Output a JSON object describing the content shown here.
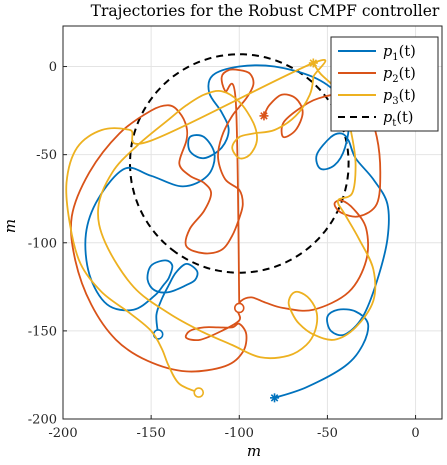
{
  "chart_data": {
    "type": "line",
    "title": "Trajectories for the Robust CMPF controller",
    "xlabel": "m",
    "ylabel": "m",
    "xlim": [
      -200,
      15
    ],
    "ylim": [
      -200,
      23
    ],
    "x_ticks": [
      "-200",
      "-150",
      "-100",
      "-50",
      "0"
    ],
    "y_ticks": [
      "0",
      "-50",
      "-100",
      "-150",
      "-200"
    ],
    "grid": true,
    "legend_position": "top-right",
    "legend": [
      {
        "key": "p1",
        "base": "p",
        "sub": "1",
        "arg": "(t)",
        "color": "#0072BD",
        "style": "solid"
      },
      {
        "key": "p2",
        "base": "p",
        "sub": "2",
        "arg": "(t)",
        "color": "#D95319",
        "style": "solid"
      },
      {
        "key": "p3",
        "base": "p",
        "sub": "3",
        "arg": "(t)",
        "color": "#EDB120",
        "style": "solid"
      },
      {
        "key": "pt",
        "base": "p",
        "sub": "t",
        "arg": "(t)",
        "color": "#000000",
        "style": "dashed"
      }
    ],
    "target_circle": {
      "center": [
        -100,
        -55
      ],
      "radius": 62,
      "from_deg": -128,
      "to_deg": 233
    },
    "series": [
      {
        "name": "p1(t)",
        "color": "#0072BD",
        "start": [
          -80,
          -188
        ],
        "end": [
          -146,
          -152
        ],
        "points": [
          [
            -80,
            -188
          ],
          [
            -62,
            -182
          ],
          [
            -40,
            -170
          ],
          [
            -30,
            -158
          ],
          [
            -27,
            -146
          ],
          [
            -34,
            -139
          ],
          [
            -44,
            -138
          ],
          [
            -50,
            -142
          ],
          [
            -48,
            -150
          ],
          [
            -40,
            -152
          ],
          [
            -30,
            -142
          ],
          [
            -22,
            -122
          ],
          [
            -16,
            -98
          ],
          [
            -16,
            -78
          ],
          [
            -24,
            -64
          ],
          [
            -34,
            -52
          ],
          [
            -38,
            -42
          ],
          [
            -42,
            -38
          ],
          [
            -48,
            -40
          ],
          [
            -56,
            -50
          ],
          [
            -54,
            -58
          ],
          [
            -46,
            -56
          ],
          [
            -40,
            -46
          ],
          [
            -38,
            -30
          ],
          [
            -44,
            -16
          ],
          [
            -58,
            -6
          ],
          [
            -80,
            0
          ],
          [
            -100,
            0
          ],
          [
            -115,
            -5
          ],
          [
            -117,
            -15
          ],
          [
            -110,
            -26
          ],
          [
            -106,
            -36
          ],
          [
            -110,
            -46
          ],
          [
            -120,
            -52
          ],
          [
            -128,
            -48
          ],
          [
            -128,
            -40
          ],
          [
            -120,
            -40
          ],
          [
            -114,
            -50
          ],
          [
            -118,
            -62
          ],
          [
            -132,
            -68
          ],
          [
            -150,
            -62
          ],
          [
            -165,
            -58
          ],
          [
            -180,
            -75
          ],
          [
            -187,
            -95
          ],
          [
            -185,
            -118
          ],
          [
            -175,
            -135
          ],
          [
            -160,
            -138
          ],
          [
            -148,
            -130
          ],
          [
            -143,
            -124
          ],
          [
            -140,
            -120
          ],
          [
            -138,
            -113
          ],
          [
            -142,
            -110
          ],
          [
            -150,
            -113
          ],
          [
            -152,
            -121
          ],
          [
            -148,
            -127
          ],
          [
            -140,
            -128
          ],
          [
            -130,
            -124
          ],
          [
            -125,
            -121
          ],
          [
            -124,
            -116
          ],
          [
            -130,
            -112
          ],
          [
            -136,
            -117
          ],
          [
            -140,
            -124
          ],
          [
            -144,
            -132
          ],
          [
            -147,
            -141
          ],
          [
            -146,
            -152
          ]
        ]
      },
      {
        "name": "p2(t)",
        "color": "#D95319",
        "start": [
          -86,
          -28
        ],
        "end": [
          -100,
          -137
        ],
        "points": [
          [
            -86,
            -28
          ],
          [
            -83,
            -22
          ],
          [
            -76,
            -16
          ],
          [
            -68,
            -18
          ],
          [
            -64,
            -26
          ],
          [
            -68,
            -36
          ],
          [
            -75,
            -40
          ],
          [
            -75,
            -32
          ],
          [
            -66,
            -24
          ],
          [
            -55,
            -18
          ],
          [
            -40,
            -16
          ],
          [
            -28,
            -24
          ],
          [
            -22,
            -40
          ],
          [
            -20,
            -60
          ],
          [
            -22,
            -78
          ],
          [
            -32,
            -85
          ],
          [
            -42,
            -83
          ],
          [
            -46,
            -78
          ],
          [
            -42,
            -76
          ],
          [
            -35,
            -81
          ],
          [
            -28,
            -92
          ],
          [
            -28,
            -110
          ],
          [
            -38,
            -128
          ],
          [
            -58,
            -138
          ],
          [
            -75,
            -137
          ],
          [
            -85,
            -134
          ],
          [
            -93,
            -131
          ],
          [
            -99,
            -133
          ],
          [
            -101,
            -138
          ],
          [
            -100,
            -144
          ],
          [
            -110,
            -150
          ],
          [
            -122,
            -155
          ],
          [
            -130,
            -154
          ],
          [
            -128,
            -150
          ],
          [
            -120,
            -148
          ],
          [
            -112,
            -148
          ],
          [
            -104,
            -148
          ],
          [
            -100,
            -146
          ],
          [
            -96,
            -152
          ],
          [
            -98,
            -162
          ],
          [
            -108,
            -170
          ],
          [
            -130,
            -173
          ],
          [
            -152,
            -167
          ],
          [
            -170,
            -155
          ],
          [
            -184,
            -135
          ],
          [
            -193,
            -110
          ],
          [
            -195,
            -85
          ],
          [
            -185,
            -60
          ],
          [
            -168,
            -38
          ],
          [
            -150,
            -25
          ],
          [
            -140,
            -22
          ],
          [
            -134,
            -26
          ],
          [
            -130,
            -34
          ],
          [
            -130,
            -42
          ],
          [
            -134,
            -55
          ],
          [
            -128,
            -62
          ],
          [
            -120,
            -66
          ],
          [
            -116,
            -72
          ],
          [
            -120,
            -82
          ],
          [
            -128,
            -92
          ],
          [
            -130,
            -102
          ],
          [
            -120,
            -106
          ],
          [
            -110,
            -104
          ],
          [
            -104,
            -96
          ],
          [
            -100,
            -86
          ],
          [
            -98,
            -78
          ],
          [
            -100,
            -70
          ],
          [
            -108,
            -64
          ],
          [
            -112,
            -52
          ],
          [
            -110,
            -40
          ],
          [
            -104,
            -28
          ],
          [
            -96,
            -18
          ],
          [
            -92,
            -10
          ],
          [
            -94,
            -4
          ],
          [
            -100,
            -2
          ],
          [
            -106,
            -2
          ],
          [
            -110,
            -6
          ],
          [
            -108,
            -14
          ],
          [
            -102,
            -20
          ],
          [
            -100,
            -137
          ]
        ]
      },
      {
        "name": "p3(t)",
        "color": "#EDB120",
        "start": [
          -58,
          2
        ],
        "end": [
          -123,
          -185
        ],
        "points": [
          [
            -58,
            2
          ],
          [
            -54,
            -4
          ],
          [
            -46,
            -12
          ],
          [
            -40,
            -24
          ],
          [
            -36,
            -40
          ],
          [
            -34,
            -56
          ],
          [
            -36,
            -72
          ],
          [
            -44,
            -76
          ],
          [
            -40,
            -84
          ],
          [
            -32,
            -98
          ],
          [
            -24,
            -115
          ],
          [
            -24,
            -133
          ],
          [
            -34,
            -148
          ],
          [
            -46,
            -155
          ],
          [
            -58,
            -152
          ],
          [
            -66,
            -146
          ],
          [
            -70,
            -140
          ],
          [
            -72,
            -134
          ],
          [
            -70,
            -129
          ],
          [
            -66,
            -128
          ],
          [
            -60,
            -132
          ],
          [
            -56,
            -140
          ],
          [
            -57,
            -150
          ],
          [
            -62,
            -158
          ],
          [
            -72,
            -164
          ],
          [
            -88,
            -165
          ],
          [
            -104,
            -158
          ],
          [
            -122,
            -150
          ],
          [
            -140,
            -140
          ],
          [
            -160,
            -125
          ],
          [
            -176,
            -100
          ],
          [
            -180,
            -80
          ],
          [
            -172,
            -60
          ],
          [
            -158,
            -45
          ],
          [
            -140,
            -30
          ],
          [
            -130,
            -22
          ],
          [
            -120,
            -16
          ],
          [
            -110,
            -14
          ],
          [
            -100,
            -20
          ],
          [
            -92,
            -32
          ],
          [
            -90,
            -42
          ],
          [
            -94,
            -50
          ],
          [
            -100,
            -52
          ],
          [
            -104,
            -46
          ],
          [
            -100,
            -40
          ],
          [
            -92,
            -38
          ],
          [
            -80,
            -36
          ],
          [
            -68,
            -28
          ],
          [
            -60,
            -16
          ],
          [
            -58,
            -6
          ],
          [
            -58,
            2
          ],
          [
            -150,
            -42
          ],
          [
            -162,
            -36
          ],
          [
            -178,
            -36
          ],
          [
            -192,
            -46
          ],
          [
            -198,
            -66
          ],
          [
            -196,
            -90
          ],
          [
            -190,
            -112
          ],
          [
            -178,
            -128
          ],
          [
            -162,
            -140
          ],
          [
            -150,
            -150
          ],
          [
            -144,
            -160
          ],
          [
            -140,
            -170
          ],
          [
            -134,
            -180
          ],
          [
            -123,
            -185
          ]
        ]
      }
    ]
  }
}
